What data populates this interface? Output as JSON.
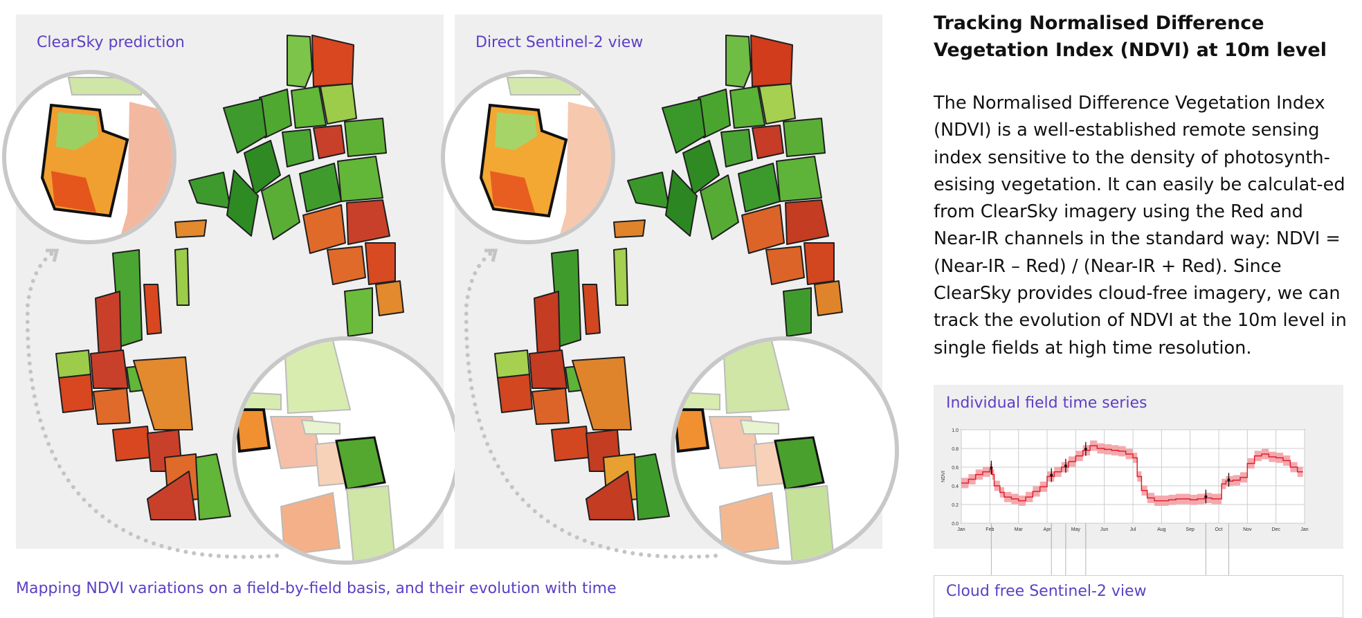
{
  "panels": {
    "left_label": "ClearSky prediction",
    "right_label": "Direct Sentinel-2 view"
  },
  "caption": "Mapping NDVI variations on a field-by-field basis, and their evolution with time",
  "sidebar": {
    "title": "Tracking Normalised Difference Vegetation Index (NDVI) at 10m level",
    "body": "The Normalised Difference Vegetation Index (NDVI) is a well-established remote sensing index sensitive to the density of photosynth-esising vegetation. It can easily be calculat-ed from ClearSky imagery using the Red and Near-IR channels in the standard way: NDVI = (Near-IR – Red) / (Near-IR + Red). Since ClearSky provides cloud-free imagery, we can track the evolution of NDVI at the 10m level in single fields at high time resolution."
  },
  "timeseries_panel": {
    "label": "Individual field time series"
  },
  "cloudfree_panel": {
    "label": "Cloud free Sentinel-2 view"
  },
  "colors": {
    "accent": "#5b3fc4",
    "panel_bg": "#efefef",
    "series_line": "#e0202c",
    "series_band": "#f29aa0"
  },
  "chart_data": {
    "type": "line",
    "title": "",
    "xlabel": "",
    "ylabel": "NDVI",
    "ylim": [
      0.0,
      1.0
    ],
    "yticks": [
      "0.0",
      "0.2",
      "0.4",
      "0.6",
      "0.8",
      "1.0"
    ],
    "xticks": [
      "Jan",
      "Feb",
      "Mar",
      "Apr",
      "May",
      "Jun",
      "Jul",
      "Aug",
      "Sep",
      "Oct",
      "Nov",
      "Dec",
      "Jan"
    ],
    "grid": true,
    "x_month": [
      0.0,
      0.25,
      0.5,
      0.75,
      1.0,
      1.08,
      1.15,
      1.35,
      1.5,
      1.75,
      2.0,
      2.25,
      2.5,
      2.75,
      3.0,
      3.25,
      3.5,
      3.75,
      4.0,
      4.25,
      4.5,
      4.75,
      5.0,
      5.25,
      5.5,
      5.75,
      6.0,
      6.15,
      6.3,
      6.5,
      6.75,
      7.0,
      7.25,
      7.5,
      7.75,
      8.0,
      8.25,
      8.5,
      8.75,
      9.0,
      9.1,
      9.25,
      9.5,
      9.75,
      10.0,
      10.25,
      10.5,
      10.75,
      11.0,
      11.25,
      11.5,
      11.75
    ],
    "ndvi": [
      0.43,
      0.47,
      0.52,
      0.55,
      0.58,
      0.52,
      0.4,
      0.33,
      0.28,
      0.26,
      0.24,
      0.28,
      0.34,
      0.39,
      0.5,
      0.55,
      0.6,
      0.66,
      0.72,
      0.78,
      0.83,
      0.8,
      0.79,
      0.78,
      0.77,
      0.74,
      0.7,
      0.5,
      0.35,
      0.27,
      0.24,
      0.24,
      0.25,
      0.26,
      0.26,
      0.25,
      0.26,
      0.27,
      0.26,
      0.26,
      0.42,
      0.45,
      0.46,
      0.49,
      0.64,
      0.72,
      0.74,
      0.71,
      0.7,
      0.67,
      0.6,
      0.55
    ],
    "band": 0.055,
    "markers_month": [
      1.05,
      3.15,
      3.65,
      4.35,
      8.55,
      9.35
    ]
  }
}
